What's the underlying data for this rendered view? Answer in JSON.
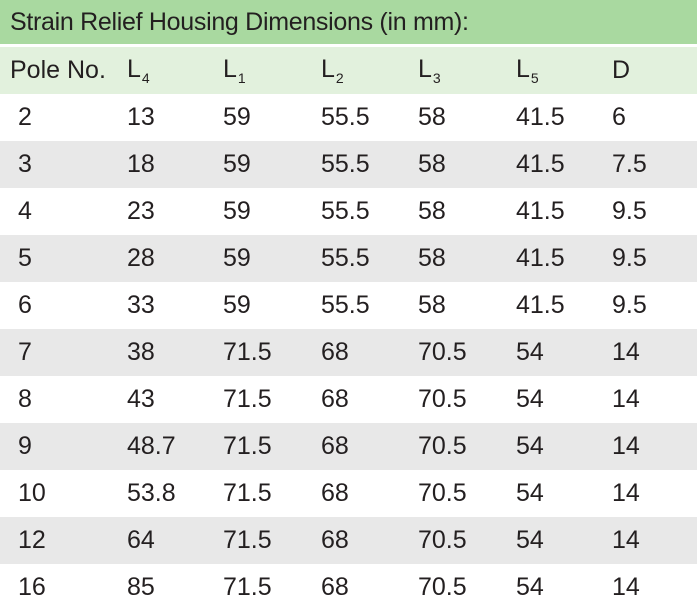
{
  "title": "Strain Relief Housing Dimensions (in mm):",
  "columns": [
    {
      "base": "Pole No.",
      "sub": ""
    },
    {
      "base": "L",
      "sub": "4"
    },
    {
      "base": "L",
      "sub": "1"
    },
    {
      "base": "L",
      "sub": "2"
    },
    {
      "base": "L",
      "sub": "3"
    },
    {
      "base": "L",
      "sub": "5"
    },
    {
      "base": "D",
      "sub": ""
    }
  ],
  "rows": [
    [
      "2",
      "13",
      "59",
      "55.5",
      "58",
      "41.5",
      "6"
    ],
    [
      "3",
      "18",
      "59",
      "55.5",
      "58",
      "41.5",
      "7.5"
    ],
    [
      "4",
      "23",
      "59",
      "55.5",
      "58",
      "41.5",
      "9.5"
    ],
    [
      "5",
      "28",
      "59",
      "55.5",
      "58",
      "41.5",
      "9.5"
    ],
    [
      "6",
      "33",
      "59",
      "55.5",
      "58",
      "41.5",
      "9.5"
    ],
    [
      "7",
      "38",
      "71.5",
      "68",
      "70.5",
      "54",
      "14"
    ],
    [
      "8",
      "43",
      "71.5",
      "68",
      "70.5",
      "54",
      "14"
    ],
    [
      "9",
      "48.7",
      "71.5",
      "68",
      "70.5",
      "54",
      "14"
    ],
    [
      "10",
      "53.8",
      "71.5",
      "68",
      "70.5",
      "54",
      "14"
    ],
    [
      "12",
      "64",
      "71.5",
      "68",
      "70.5",
      "54",
      "14"
    ],
    [
      "16",
      "85",
      "71.5",
      "68",
      "70.5",
      "54",
      "14"
    ]
  ],
  "colors": {
    "title_bg": "#a9d9a0",
    "header_bg": "#e2f1dd",
    "stripe_bg": "#e8e8e8",
    "text": "#231f20"
  }
}
